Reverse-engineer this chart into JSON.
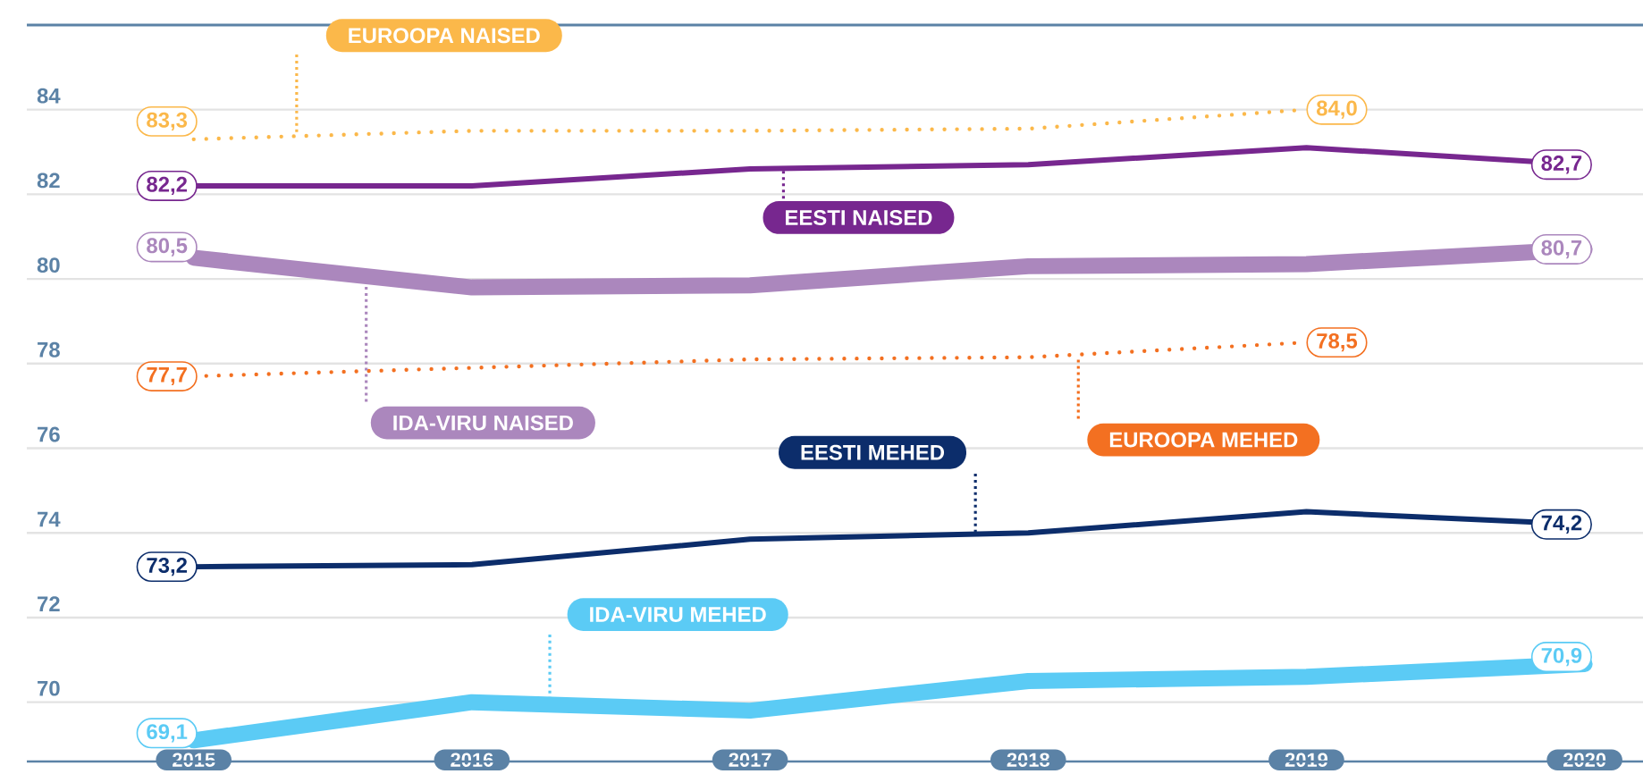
{
  "chart_data": {
    "type": "line",
    "categories": [
      "2015",
      "2016",
      "2017",
      "2018",
      "2019",
      "2020"
    ],
    "series": [
      {
        "name": "EUROOPA NAISED",
        "color": "#fbb84a",
        "line_style": "dotted",
        "values": [
          83.3,
          83.5,
          83.5,
          83.55,
          84.0,
          null
        ],
        "value_labels": [
          "83,3",
          null,
          null,
          null,
          "84,0",
          null
        ]
      },
      {
        "name": "EESTI NAISED",
        "color": "#77278f",
        "line_style": "solid",
        "values": [
          82.2,
          82.2,
          82.6,
          82.7,
          83.1,
          82.7
        ],
        "value_labels": [
          "82,2",
          null,
          null,
          null,
          null,
          "82,7"
        ]
      },
      {
        "name": "IDA-VIRU NAISED",
        "color": "#ab87bd",
        "line_style": "solid",
        "values": [
          80.5,
          79.8,
          79.85,
          80.3,
          80.35,
          80.7
        ],
        "value_labels": [
          "80,5",
          null,
          null,
          null,
          null,
          "80,7"
        ]
      },
      {
        "name": "EUROOPA MEHED",
        "color": "#f37021",
        "line_style": "dotted",
        "values": [
          77.7,
          77.9,
          78.1,
          78.15,
          78.5,
          null
        ],
        "value_labels": [
          "77,7",
          null,
          null,
          null,
          "78,5",
          null
        ]
      },
      {
        "name": "EESTI MEHED",
        "color": "#0c2d6b",
        "line_style": "solid",
        "values": [
          73.2,
          73.25,
          73.85,
          74.0,
          74.5,
          74.2
        ],
        "value_labels": [
          "73,2",
          null,
          null,
          null,
          null,
          "74,2"
        ]
      },
      {
        "name": "IDA-VIRU MEHED",
        "color": "#5bcbf5",
        "line_style": "solid",
        "values": [
          69.1,
          70.0,
          69.8,
          70.5,
          70.6,
          70.9
        ],
        "value_labels": [
          "69,1",
          null,
          null,
          null,
          null,
          "70,9"
        ]
      }
    ],
    "ylim": [
      68.6,
      86
    ],
    "yticks": [
      70,
      72,
      74,
      76,
      78,
      80,
      82,
      84
    ],
    "grid": "y",
    "marker": "none"
  }
}
